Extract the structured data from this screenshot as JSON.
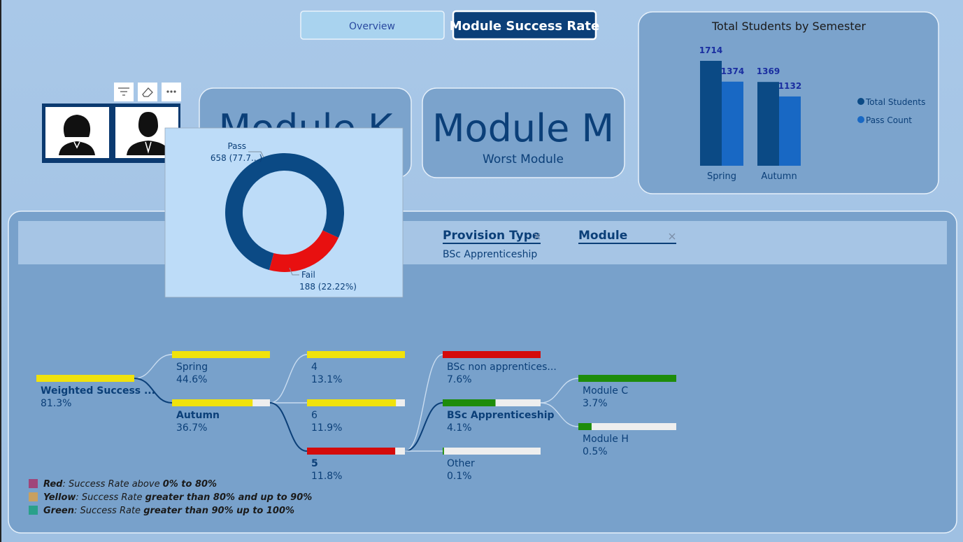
{
  "tabs": [
    "Overview",
    "Module Success Rate"
  ],
  "cards": [
    {
      "title": "Module K"
    },
    {
      "title": "Module M",
      "subtitle": "Worst Module"
    }
  ],
  "filters": [
    {
      "label": "Provision Type",
      "value": "BSc Apprenticeship"
    },
    {
      "label": "Module"
    }
  ],
  "chart_data": [
    {
      "type": "bar",
      "title": "Total Students by Semester",
      "categories": [
        "Spring",
        "Autumn"
      ],
      "series": [
        {
          "name": "Total Students",
          "color": "#0b4a85",
          "values": [
            1714,
            1369
          ]
        },
        {
          "name": "Pass Count",
          "color": "#1868c4",
          "values": [
            1374,
            1132
          ]
        }
      ],
      "legend": "right"
    },
    {
      "type": "pie",
      "categories": [
        "Pass",
        "Fail"
      ],
      "values": [
        658,
        188
      ],
      "value_labels": [
        "658 (77.7...)",
        "188 (22.22%)"
      ],
      "colors": [
        "#0b4a85",
        "#e81010"
      ],
      "hole": true
    }
  ],
  "decomposition_tree": {
    "levels": [
      [
        {
          "label": "Weighted Success ...",
          "value": 81.3,
          "value_label": "81.3%",
          "color": "#f0e20c",
          "selected": true
        }
      ],
      [
        {
          "label": "Spring",
          "value": 44.6,
          "value_label": "44.6%",
          "color": "#f0e20c",
          "selected": false
        },
        {
          "label": "Autumn",
          "value": 36.7,
          "value_label": "36.7%",
          "color": "#f0e20c",
          "selected": true
        }
      ],
      [
        {
          "label": "4",
          "value": 13.1,
          "value_label": "13.1%",
          "color": "#f0e20c",
          "selected": false
        },
        {
          "label": "6",
          "value": 11.9,
          "value_label": "11.9%",
          "color": "#f0e20c",
          "selected": false
        },
        {
          "label": "5",
          "value": 11.8,
          "value_label": "11.8%",
          "color": "#d40b0b",
          "selected": true
        }
      ],
      [
        {
          "label": "BSc non apprentices...",
          "value": 7.6,
          "value_label": "7.6%",
          "color": "#d40b0b",
          "selected": false
        },
        {
          "label": "BSc Apprenticeship",
          "value": 4.1,
          "value_label": "4.1%",
          "color": "#1e8c0b",
          "selected": true
        },
        {
          "label": "Other",
          "value": 0.1,
          "value_label": "0.1%",
          "color": "#1e8c0b",
          "selected": false
        }
      ],
      [
        {
          "label": "Module C",
          "value": 3.7,
          "value_label": "3.7%",
          "color": "#1e8c0b",
          "selected": false
        },
        {
          "label": "Module H",
          "value": 0.5,
          "value_label": "0.5%",
          "color": "#1e8c0b",
          "selected": false
        }
      ]
    ]
  },
  "legend": [
    {
      "color": "#a0457a",
      "name": "Red",
      "text": ": Success Rate above ",
      "emphasis": "0% to 80%"
    },
    {
      "color": "#c8a060",
      "name": "Yellow",
      "text": ": Success Rate ",
      "emphasis": "greater than 80% and up to 90%"
    },
    {
      "color": "#2aa08a",
      "name": "Green",
      "text": ": Success Rate ",
      "emphasis": "greater than 90% up to 100%"
    }
  ]
}
